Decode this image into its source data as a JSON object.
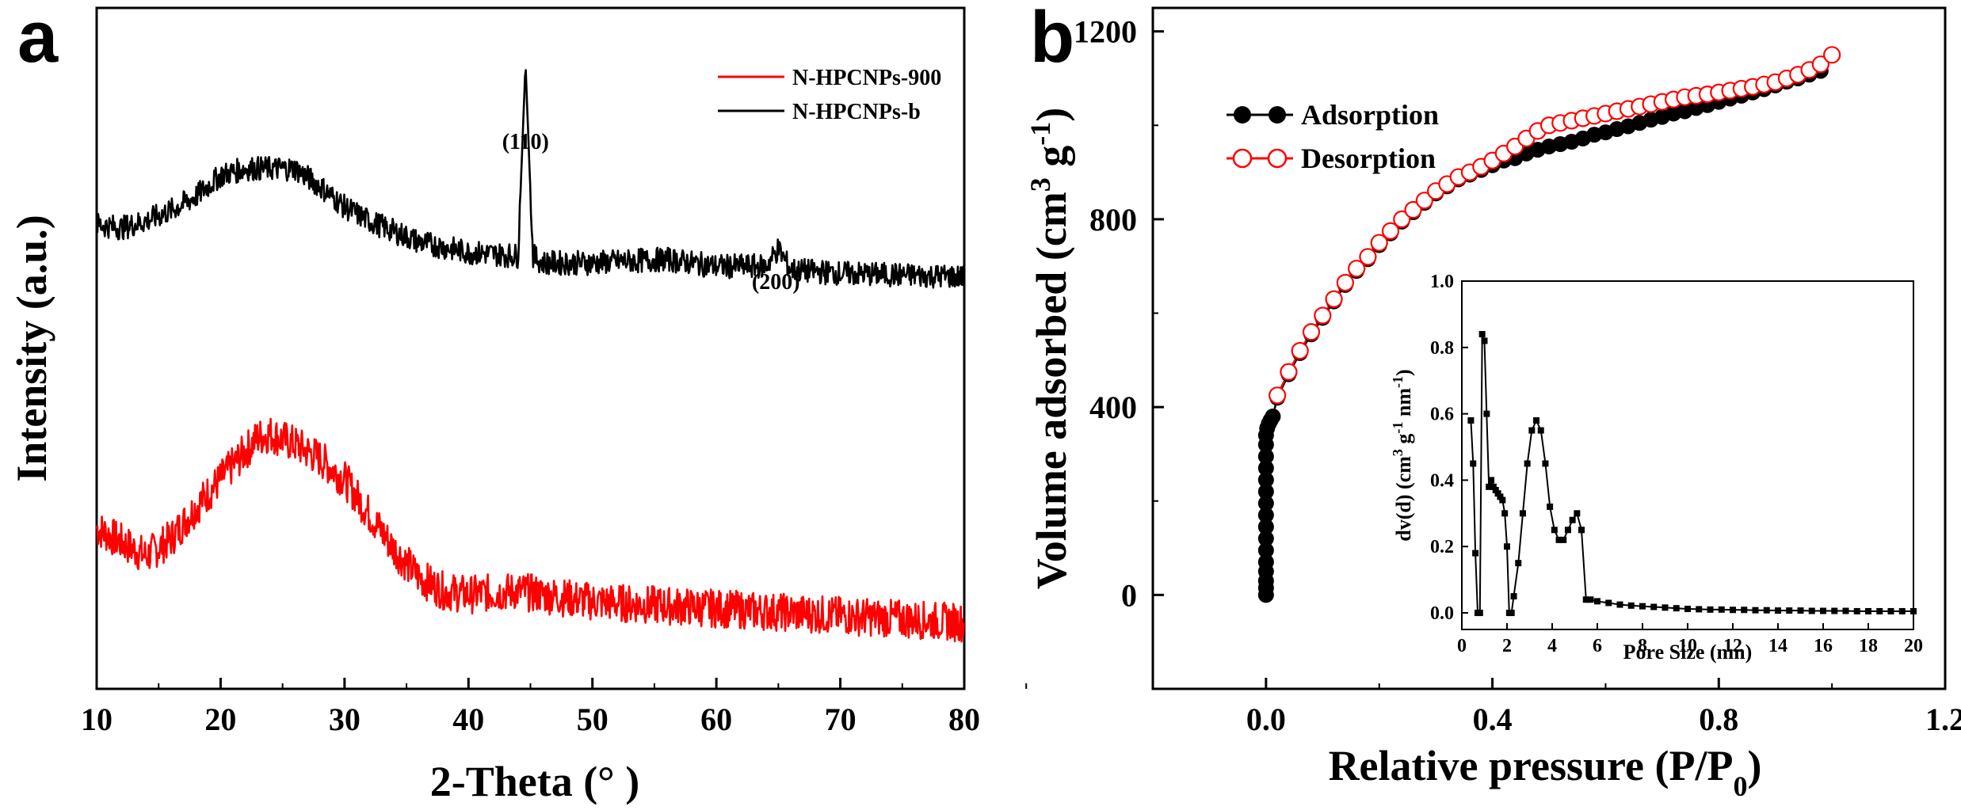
{
  "panels": [
    {
      "letter": "a",
      "chart_data": {
        "type": "line",
        "title": "",
        "xlabel": "2-Theta (°  )",
        "ylabel": "Intensity (a.u.)",
        "xlim": [
          10,
          80
        ],
        "xticks": [
          10,
          20,
          30,
          40,
          50,
          60,
          70,
          80
        ],
        "yticks_shown": false,
        "legend_position": "top-right",
        "series": [
          {
            "name": "N-HPCNPs-900",
            "color": "#ff0000",
            "x": [
              10,
              12,
              14,
              16,
              18,
              20,
              22,
              23,
              24,
              26,
              28,
              30,
              32,
              34,
              36,
              38,
              40,
              44,
              50,
              60,
              70,
              80
            ],
            "y": [
              0.66,
              0.62,
              0.58,
              0.63,
              0.72,
              0.8,
              0.88,
              0.92,
              0.93,
              0.9,
              0.86,
              0.8,
              0.7,
              0.6,
              0.52,
              0.48,
              0.47,
              0.48,
              0.45,
              0.43,
              0.41,
              0.39
            ]
          },
          {
            "name": "N-HPCNPs-b",
            "color": "#000000",
            "x": [
              10,
              12,
              14,
              16,
              18,
              20,
              22,
              24,
              26,
              28,
              30,
              32,
              34,
              36,
              40,
              44,
              44.6,
              45.2,
              46,
              50,
              56,
              60,
              64,
              65,
              66,
              70,
              80
            ],
            "y": [
              1.53,
              1.52,
              1.54,
              1.57,
              1.61,
              1.67,
              1.69,
              1.69,
              1.69,
              1.64,
              1.58,
              1.54,
              1.51,
              1.48,
              1.45,
              1.44,
              1.99,
              1.44,
              1.42,
              1.42,
              1.43,
              1.41,
              1.41,
              1.46,
              1.4,
              1.39,
              1.38
            ]
          }
        ],
        "annotations": [
          {
            "text": "(110)",
            "x": 44.6
          },
          {
            "text": "(200)",
            "x": 64.8
          }
        ]
      }
    },
    {
      "letter": "b",
      "chart_data": {
        "type": "scatter",
        "title": "",
        "xlabel": "Relative pressure (P/P0)",
        "xlabel_main": "Relative pressure (P/P",
        "xlabel_sub": "0",
        "xlabel_end": ")",
        "ylabel": "Volume  adsorbed (cm3 g-1)",
        "ylabel_main": "Volume  adsorbed (cm",
        "ylabel_sup1": "3",
        "ylabel_mid": " g",
        "ylabel_sup2": "-1",
        "ylabel_end": ")",
        "xlim": [
          -0.2,
          1.2
        ],
        "ylim": [
          -200,
          1250
        ],
        "xticks": [
          "0.0",
          "0.4",
          "0.8",
          "1.2"
        ],
        "yticks": [
          "0",
          "400",
          "800",
          "1200"
        ],
        "legend_position": "top-left",
        "series": [
          {
            "name": "Adsorption",
            "color": "#000000",
            "marker": "filled-circle",
            "x": [
              0.0,
              0.0,
              0.0,
              0.0,
              0.0,
              0.0,
              0.0,
              0.0,
              0.0,
              0.0,
              0.0,
              0.0,
              0.0,
              0.0,
              0.0,
              0.0,
              0.002,
              0.005,
              0.008,
              0.012,
              0.02,
              0.04,
              0.06,
              0.08,
              0.1,
              0.12,
              0.14,
              0.16,
              0.18,
              0.2,
              0.22,
              0.24,
              0.26,
              0.28,
              0.3,
              0.32,
              0.34,
              0.36,
              0.38,
              0.4,
              0.42,
              0.44,
              0.46,
              0.48,
              0.5,
              0.52,
              0.54,
              0.56,
              0.58,
              0.6,
              0.62,
              0.64,
              0.66,
              0.68,
              0.7,
              0.72,
              0.74,
              0.76,
              0.78,
              0.8,
              0.82,
              0.84,
              0.86,
              0.88,
              0.9,
              0.92,
              0.94,
              0.96,
              0.98
            ],
            "y": [
              0,
              15,
              30,
              50,
              70,
              95,
              120,
              145,
              170,
              195,
              220,
              245,
              270,
              295,
              320,
              340,
              355,
              365,
              372,
              380,
              420,
              470,
              515,
              555,
              590,
              625,
              660,
              690,
              715,
              745,
              770,
              795,
              815,
              835,
              855,
              870,
              885,
              895,
              905,
              915,
              925,
              930,
              940,
              948,
              955,
              960,
              965,
              972,
              980,
              985,
              992,
              998,
              1005,
              1012,
              1018,
              1025,
              1030,
              1037,
              1043,
              1050,
              1057,
              1063,
              1070,
              1077,
              1085,
              1093,
              1100,
              1108,
              1116
            ]
          },
          {
            "name": "Desorption",
            "color": "#ff0000",
            "marker": "open-circle",
            "x": [
              0.02,
              0.04,
              0.06,
              0.08,
              0.1,
              0.12,
              0.14,
              0.16,
              0.18,
              0.2,
              0.22,
              0.24,
              0.26,
              0.28,
              0.3,
              0.32,
              0.34,
              0.36,
              0.38,
              0.4,
              0.42,
              0.44,
              0.46,
              0.48,
              0.5,
              0.52,
              0.54,
              0.56,
              0.58,
              0.6,
              0.62,
              0.64,
              0.66,
              0.68,
              0.7,
              0.72,
              0.74,
              0.76,
              0.78,
              0.8,
              0.82,
              0.84,
              0.86,
              0.88,
              0.9,
              0.92,
              0.94,
              0.96,
              0.98,
              1.0
            ],
            "y": [
              425,
              475,
              520,
              560,
              595,
              630,
              665,
              695,
              720,
              750,
              775,
              800,
              820,
              840,
              860,
              875,
              890,
              900,
              912,
              925,
              940,
              955,
              972,
              988,
              1000,
              1005,
              1010,
              1015,
              1020,
              1025,
              1030,
              1035,
              1040,
              1045,
              1050,
              1055,
              1060,
              1063,
              1066,
              1070,
              1074,
              1078,
              1082,
              1087,
              1092,
              1100,
              1108,
              1118,
              1130,
              1150
            ]
          }
        ],
        "inset": {
          "type": "line",
          "xlabel": "Pore Size (nm)",
          "ylabel": "dv(d) (cm3 g-1 nm-1)",
          "ylabel_a": "dv(d) (cm",
          "ylabel_s1": "3",
          "ylabel_b": " g",
          "ylabel_s2": "-1",
          "ylabel_c": " nm",
          "ylabel_s3": "-1",
          "ylabel_d": ")",
          "xlim": [
            0,
            20
          ],
          "ylim": [
            -0.05,
            1.0
          ],
          "xticks": [
            "0",
            "2",
            "4",
            "6",
            "8",
            "10",
            "12",
            "14",
            "16",
            "18",
            "20"
          ],
          "yticks": [
            "0.0",
            "0.2",
            "0.4",
            "0.6",
            "0.8",
            "1.0"
          ],
          "series": [
            {
              "name": "",
              "color": "#000000",
              "marker": "filled-square",
              "x": [
                0.4,
                0.5,
                0.6,
                0.7,
                0.8,
                0.9,
                1.0,
                1.1,
                1.2,
                1.3,
                1.4,
                1.5,
                1.6,
                1.7,
                1.8,
                1.9,
                2.0,
                2.1,
                2.2,
                2.3,
                2.5,
                2.7,
                2.9,
                3.1,
                3.3,
                3.5,
                3.7,
                3.9,
                4.1,
                4.3,
                4.5,
                4.7,
                4.9,
                5.1,
                5.3,
                5.5,
                5.7,
                6.0,
                6.5,
                7.0,
                7.5,
                8.0,
                8.5,
                9.0,
                9.5,
                10,
                10.5,
                11,
                11.5,
                12,
                12.5,
                13,
                13.5,
                14,
                14.5,
                15,
                15.5,
                16,
                16.5,
                17,
                17.5,
                18,
                18.5,
                19,
                19.5,
                20
              ],
              "y": [
                0.58,
                0.45,
                0.18,
                0.0,
                0.0,
                0.84,
                0.82,
                0.6,
                0.38,
                0.4,
                0.38,
                0.37,
                0.36,
                0.35,
                0.34,
                0.3,
                0.2,
                0.0,
                0.0,
                0.05,
                0.15,
                0.3,
                0.45,
                0.55,
                0.58,
                0.55,
                0.45,
                0.32,
                0.25,
                0.22,
                0.22,
                0.25,
                0.28,
                0.3,
                0.25,
                0.04,
                0.04,
                0.035,
                0.03,
                0.025,
                0.022,
                0.02,
                0.018,
                0.016,
                0.014,
                0.012,
                0.011,
                0.01,
                0.01,
                0.009,
                0.009,
                0.008,
                0.008,
                0.007,
                0.007,
                0.007,
                0.006,
                0.006,
                0.006,
                0.006,
                0.005,
                0.005,
                0.005,
                0.005,
                0.005,
                0.005
              ]
            }
          ]
        }
      }
    }
  ]
}
